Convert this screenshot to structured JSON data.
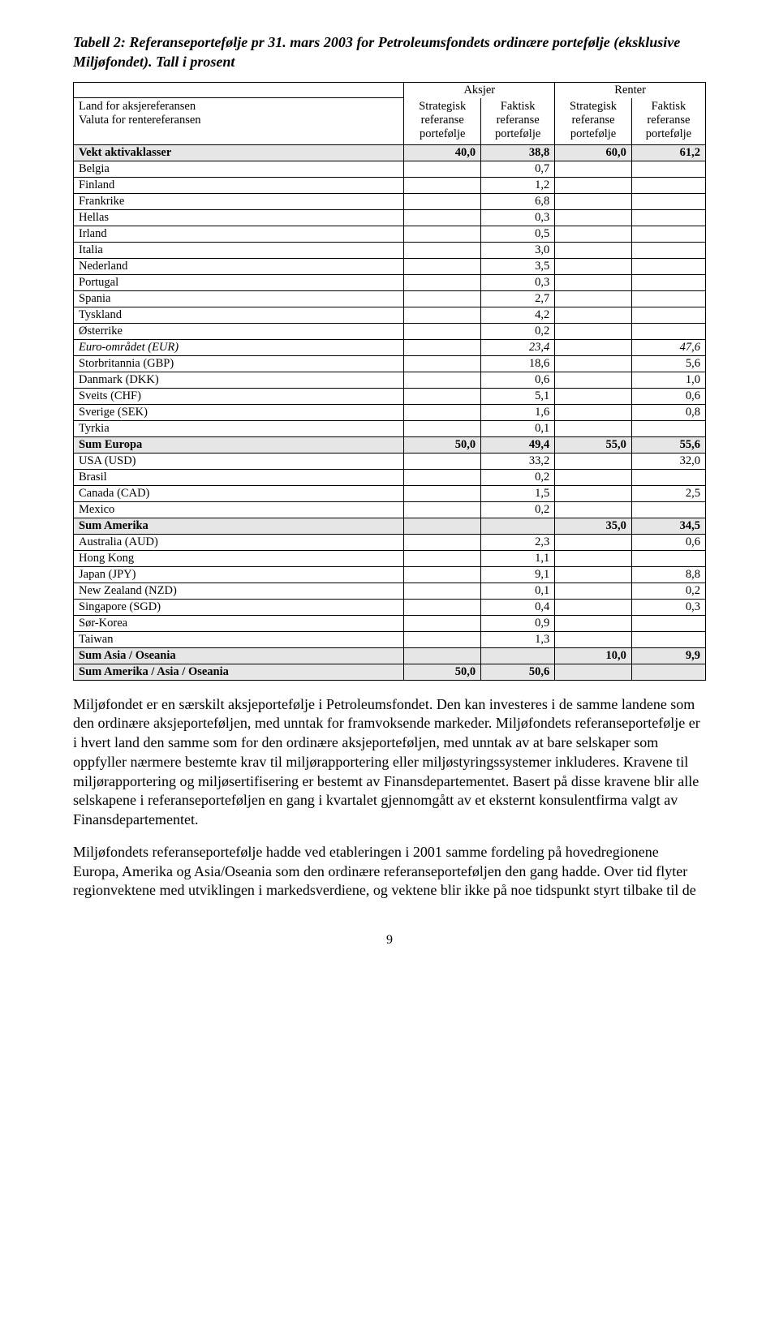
{
  "title": "Tabell 2: Referanseportefølje pr 31. mars 2003 for Petroleumsfondets ordinære portefølje (eksklusive Miljøfondet). Tall i prosent",
  "table": {
    "group_headers": {
      "empty": "",
      "aksjer": "Aksjer",
      "renter": "Renter"
    },
    "col_headers": {
      "label_line1": "Land for aksjereferansen",
      "label_line2": "Valuta for rentereferansen",
      "strat_ref": "Strategisk referanse portefølje",
      "fakt_ref": "Faktisk referanse portefølje"
    },
    "rows": [
      {
        "label": "Vekt aktivaklasser",
        "c1": "40,0",
        "c2": "38,8",
        "c3": "60,0",
        "c4": "61,2",
        "shaded": true,
        "bold": true
      },
      {
        "label": "Belgia",
        "c1": "",
        "c2": "0,7",
        "c3": "",
        "c4": ""
      },
      {
        "label": "Finland",
        "c1": "",
        "c2": "1,2",
        "c3": "",
        "c4": ""
      },
      {
        "label": "Frankrike",
        "c1": "",
        "c2": "6,8",
        "c3": "",
        "c4": ""
      },
      {
        "label": "Hellas",
        "c1": "",
        "c2": "0,3",
        "c3": "",
        "c4": ""
      },
      {
        "label": "Irland",
        "c1": "",
        "c2": "0,5",
        "c3": "",
        "c4": ""
      },
      {
        "label": "Italia",
        "c1": "",
        "c2": "3,0",
        "c3": "",
        "c4": ""
      },
      {
        "label": "Nederland",
        "c1": "",
        "c2": "3,5",
        "c3": "",
        "c4": ""
      },
      {
        "label": "Portugal",
        "c1": "",
        "c2": "0,3",
        "c3": "",
        "c4": ""
      },
      {
        "label": "Spania",
        "c1": "",
        "c2": "2,7",
        "c3": "",
        "c4": ""
      },
      {
        "label": "Tyskland",
        "c1": "",
        "c2": "4,2",
        "c3": "",
        "c4": ""
      },
      {
        "label": "Østerrike",
        "c1": "",
        "c2": "0,2",
        "c3": "",
        "c4": ""
      },
      {
        "label": "Euro-området (EUR)",
        "c1": "",
        "c2": "23,4",
        "c3": "",
        "c4": "47,6",
        "italic": true
      },
      {
        "label": "Storbritannia (GBP)",
        "c1": "",
        "c2": "18,6",
        "c3": "",
        "c4": "5,6"
      },
      {
        "label": "Danmark (DKK)",
        "c1": "",
        "c2": "0,6",
        "c3": "",
        "c4": "1,0"
      },
      {
        "label": "Sveits (CHF)",
        "c1": "",
        "c2": "5,1",
        "c3": "",
        "c4": "0,6"
      },
      {
        "label": "Sverige (SEK)",
        "c1": "",
        "c2": "1,6",
        "c3": "",
        "c4": "0,8"
      },
      {
        "label": "Tyrkia",
        "c1": "",
        "c2": "0,1",
        "c3": "",
        "c4": ""
      },
      {
        "label": "Sum Europa",
        "c1": "50,0",
        "c2": "49,4",
        "c3": "55,0",
        "c4": "55,6",
        "shaded": true,
        "bold": true
      },
      {
        "label": "USA (USD)",
        "c1": "",
        "c2": "33,2",
        "c3": "",
        "c4": "32,0"
      },
      {
        "label": "Brasil",
        "c1": "",
        "c2": "0,2",
        "c3": "",
        "c4": ""
      },
      {
        "label": "Canada (CAD)",
        "c1": "",
        "c2": "1,5",
        "c3": "",
        "c4": "2,5"
      },
      {
        "label": "Mexico",
        "c1": "",
        "c2": "0,2",
        "c3": "",
        "c4": ""
      },
      {
        "label": "Sum Amerika",
        "c1": "",
        "c2": "",
        "c3": "35,0",
        "c4": "34,5",
        "shaded": true,
        "bold": true
      },
      {
        "label": "Australia (AUD)",
        "c1": "",
        "c2": "2,3",
        "c3": "",
        "c4": "0,6"
      },
      {
        "label": "Hong Kong",
        "c1": "",
        "c2": "1,1",
        "c3": "",
        "c4": ""
      },
      {
        "label": "Japan (JPY)",
        "c1": "",
        "c2": "9,1",
        "c3": "",
        "c4": "8,8"
      },
      {
        "label": "New Zealand (NZD)",
        "c1": "",
        "c2": "0,1",
        "c3": "",
        "c4": "0,2"
      },
      {
        "label": "Singapore (SGD)",
        "c1": "",
        "c2": "0,4",
        "c3": "",
        "c4": "0,3"
      },
      {
        "label": "Sør-Korea",
        "c1": "",
        "c2": "0,9",
        "c3": "",
        "c4": ""
      },
      {
        "label": "Taiwan",
        "c1": "",
        "c2": "1,3",
        "c3": "",
        "c4": ""
      },
      {
        "label": "Sum Asia / Oseania",
        "c1": "",
        "c2": "",
        "c3": "10,0",
        "c4": "9,9",
        "shaded": true,
        "bold": true
      },
      {
        "label": "Sum Amerika / Asia / Oseania",
        "c1": "50,0",
        "c2": "50,6",
        "c3": "",
        "c4": "",
        "shaded": true,
        "bold": true
      }
    ]
  },
  "paragraphs": {
    "p1": "Miljøfondet er en særskilt aksjeportefølje i Petroleumsfondet. Den kan investeres i de samme landene som den ordinære aksjeporteføljen, med unntak for framvoksende markeder. Miljøfondets referanseportefølje er i hvert land den samme som for den ordinære aksjeporteføljen, med unntak av at bare selskaper som oppfyller nærmere bestemte krav til miljørapportering eller miljøstyringssystemer inkluderes. Kravene til miljørapportering og miljøsertifisering er bestemt av Finansdepartementet. Basert på disse kravene blir alle selskapene i referanseporteføljen en gang i kvartalet gjennomgått av et eksternt konsulentfirma valgt av Finansdepartementet.",
    "p2": "Miljøfondets referanseportefølje hadde ved etableringen i 2001 samme fordeling på hovedregionene Europa, Amerika og Asia/Oseania som den ordinære referanseporteføljen den gang hadde. Over tid flyter regionvektene med utviklingen i markedsverdiene, og vektene blir ikke på noe tidspunkt styrt tilbake til de"
  },
  "page_number": "9"
}
